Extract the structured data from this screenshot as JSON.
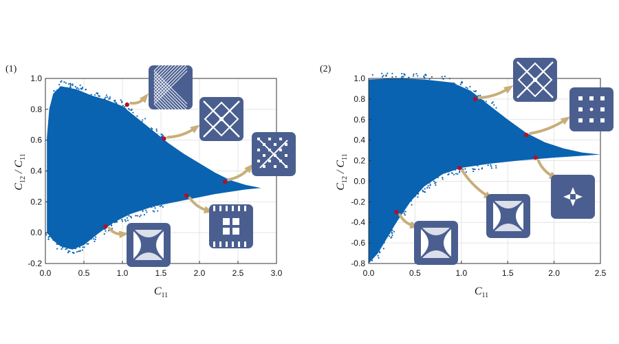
{
  "colors": {
    "cloud": "#0a63b0",
    "marker": "#b0102a",
    "arrow": "#c9ae7a",
    "structure": "#4a5f90",
    "frame": "#333333",
    "grid": "#e4e4e4"
  },
  "chart_data": [
    {
      "panel_label": "(1)",
      "type": "scatter",
      "title": "",
      "xlabel": {
        "main": "C",
        "sub": "11"
      },
      "ylabel": {
        "num": "C",
        "num_sub": "12",
        "sep": " / ",
        "den": "C",
        "den_sub": "11"
      },
      "xlim": [
        0.0,
        3.0
      ],
      "ylim": [
        -0.2,
        1.0
      ],
      "xticks": [
        "0.0",
        "0.5",
        "1.0",
        "1.5",
        "2.0",
        "2.5",
        "3.0"
      ],
      "yticks": [
        "-0.2",
        "0.0",
        "0.2",
        "0.4",
        "0.6",
        "0.8",
        "1.0"
      ],
      "grid": true,
      "envelope": {
        "upper": [
          [
            0.02,
            0.62
          ],
          [
            0.05,
            0.8
          ],
          [
            0.1,
            0.9
          ],
          [
            0.2,
            0.95
          ],
          [
            0.4,
            0.93
          ],
          [
            0.6,
            0.89
          ],
          [
            0.8,
            0.86
          ],
          [
            1.0,
            0.82
          ],
          [
            1.2,
            0.74
          ],
          [
            1.4,
            0.66
          ],
          [
            1.6,
            0.58
          ],
          [
            1.8,
            0.51
          ],
          [
            2.0,
            0.45
          ],
          [
            2.2,
            0.39
          ],
          [
            2.4,
            0.34
          ],
          [
            2.6,
            0.31
          ],
          [
            2.8,
            0.29
          ]
        ],
        "lower": [
          [
            0.02,
            0.0
          ],
          [
            0.1,
            -0.05
          ],
          [
            0.2,
            -0.09
          ],
          [
            0.35,
            -0.11
          ],
          [
            0.5,
            -0.08
          ],
          [
            0.7,
            0.0
          ],
          [
            0.9,
            0.07
          ],
          [
            1.1,
            0.12
          ],
          [
            1.4,
            0.17
          ],
          [
            1.8,
            0.21
          ],
          [
            2.2,
            0.25
          ],
          [
            2.6,
            0.28
          ],
          [
            2.8,
            0.29
          ]
        ]
      },
      "highlighted_points": [
        {
          "x": 1.06,
          "y": 0.83
        },
        {
          "x": 1.54,
          "y": 0.61
        },
        {
          "x": 2.33,
          "y": 0.33
        },
        {
          "x": 1.83,
          "y": 0.24
        },
        {
          "x": 0.78,
          "y": 0.04
        }
      ]
    },
    {
      "panel_label": "(2)",
      "type": "scatter",
      "title": "",
      "xlabel": {
        "main": "C",
        "sub": "11"
      },
      "ylabel": {
        "num": "C",
        "num_sub": "12",
        "sep": " / ",
        "den": "C",
        "den_sub": "11"
      },
      "xlim": [
        0.0,
        2.5
      ],
      "ylim": [
        -0.8,
        1.0
      ],
      "xticks": [
        "0.0",
        "0.5",
        "1.0",
        "1.5",
        "2.0",
        "2.5"
      ],
      "yticks": [
        "-0.8",
        "-0.6",
        "-0.4",
        "-0.2",
        "0.0",
        "0.2",
        "0.4",
        "0.6",
        "0.8",
        "1.0"
      ],
      "grid": true,
      "envelope": {
        "upper": [
          [
            0.0,
            0.99
          ],
          [
            0.3,
            1.0
          ],
          [
            0.6,
            0.99
          ],
          [
            0.9,
            0.96
          ],
          [
            1.1,
            0.88
          ],
          [
            1.3,
            0.74
          ],
          [
            1.5,
            0.6
          ],
          [
            1.7,
            0.47
          ],
          [
            1.9,
            0.38
          ],
          [
            2.1,
            0.32
          ],
          [
            2.3,
            0.28
          ],
          [
            2.5,
            0.26
          ]
        ],
        "lower": [
          [
            0.0,
            -0.8
          ],
          [
            0.1,
            -0.7
          ],
          [
            0.2,
            -0.55
          ],
          [
            0.3,
            -0.4
          ],
          [
            0.45,
            -0.2
          ],
          [
            0.6,
            -0.05
          ],
          [
            0.8,
            0.07
          ],
          [
            1.0,
            0.13
          ],
          [
            1.3,
            0.17
          ],
          [
            1.6,
            0.2
          ],
          [
            2.0,
            0.23
          ],
          [
            2.5,
            0.26
          ]
        ]
      },
      "highlighted_points": [
        {
          "x": 1.15,
          "y": 0.8
        },
        {
          "x": 1.7,
          "y": 0.45
        },
        {
          "x": 0.98,
          "y": 0.13
        },
        {
          "x": 1.8,
          "y": 0.23
        },
        {
          "x": 0.3,
          "y": -0.3
        }
      ]
    }
  ]
}
